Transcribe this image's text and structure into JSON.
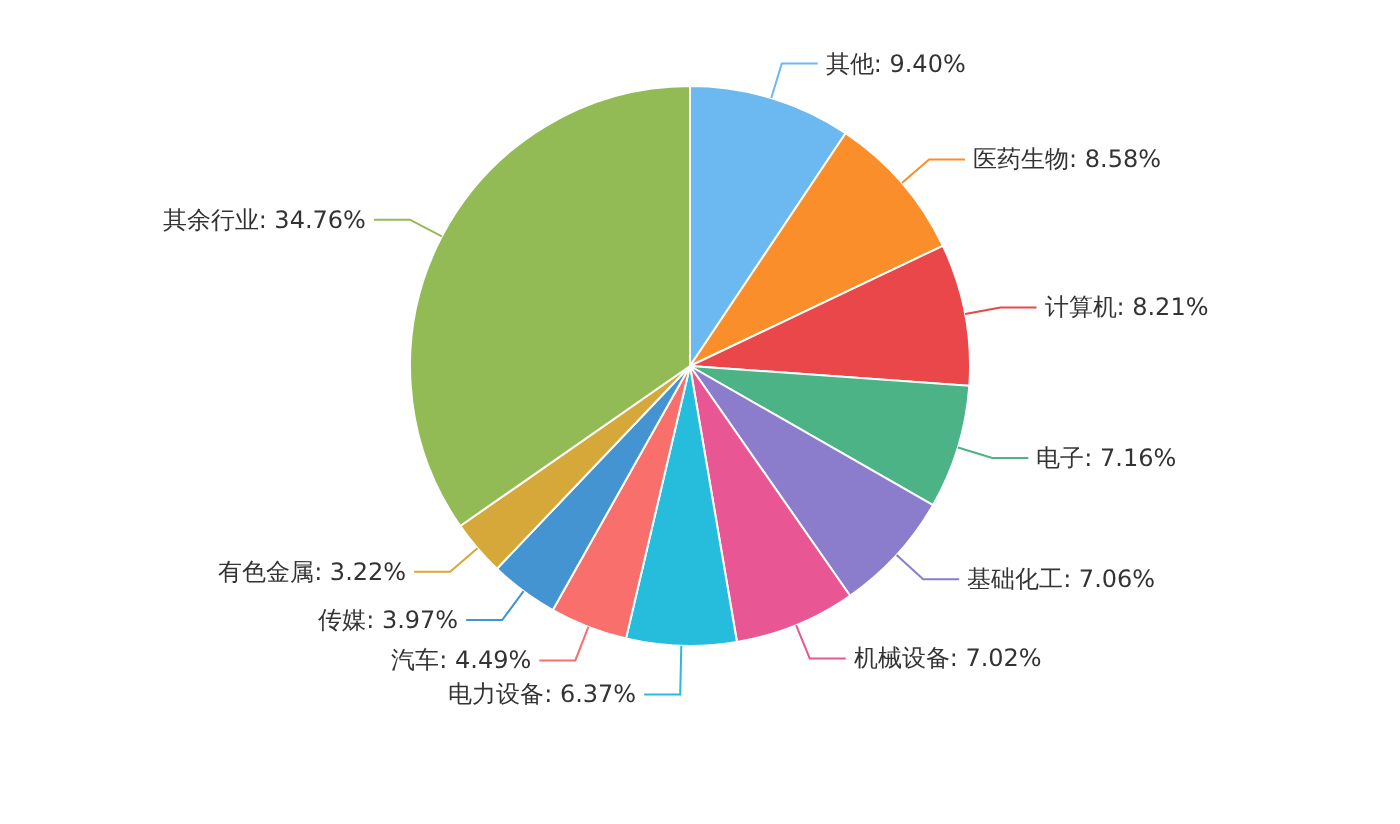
{
  "chart_data": {
    "type": "pie",
    "categories": [
      "其他",
      "医药生物",
      "计算机",
      "电子",
      "基础化工",
      "机械设备",
      "电力设备",
      "汽车",
      "传媒",
      "有色金属",
      "其余行业"
    ],
    "values": [
      9.4,
      8.58,
      8.21,
      7.16,
      7.06,
      7.02,
      6.37,
      4.49,
      3.97,
      3.22,
      34.76
    ],
    "value_labels": [
      "9.40%",
      "8.58%",
      "8.21%",
      "7.16%",
      "7.06%",
      "7.02%",
      "6.37%",
      "4.49%",
      "3.97%",
      "3.22%",
      "34.76%"
    ],
    "colors": [
      "#6cb8f0",
      "#f98e2b",
      "#e94749",
      "#4bb386",
      "#8c7ccc",
      "#e85693",
      "#26bcdc",
      "#f86f6c",
      "#4394d0",
      "#d6a83a",
      "#93bb55"
    ],
    "legend": false
  }
}
